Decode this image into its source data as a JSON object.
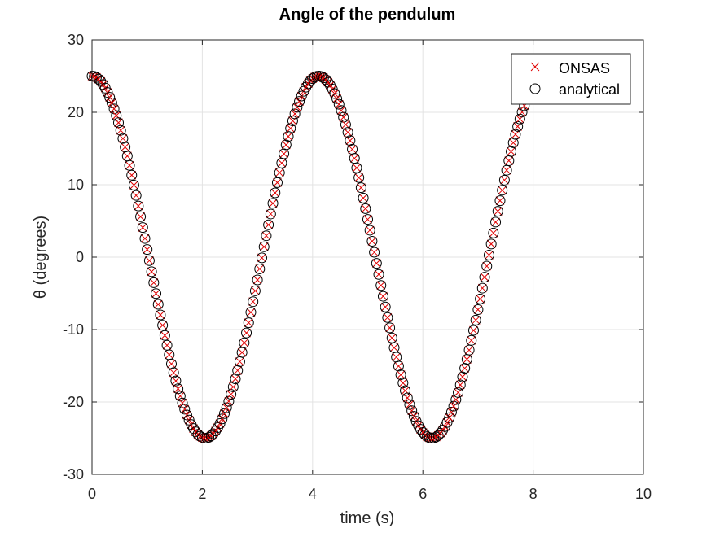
{
  "chart_data": {
    "type": "scatter",
    "title": "Angle of the pendulum",
    "xlabel": "time (s)",
    "ylabel": "θ (degrees)",
    "xlim": [
      0,
      10
    ],
    "ylim": [
      -30,
      30
    ],
    "xticks": [
      "0",
      "2",
      "4",
      "6",
      "8",
      "10"
    ],
    "yticks": [
      "-30",
      "-20",
      "-10",
      "0",
      "10",
      "20",
      "30"
    ],
    "grid": true,
    "legend_position": "top-right",
    "x_range_shown": [
      0,
      7.86
    ],
    "period_s": 4.11,
    "amplitude_deg": 25,
    "series": [
      {
        "name": "ONSAS",
        "marker": "x",
        "color": "#e00000"
      },
      {
        "name": "analytical",
        "marker": "o",
        "color": "#000000"
      }
    ],
    "samples": [
      {
        "t": 0.0,
        "theta": 25.0
      },
      {
        "t": 0.5,
        "theta": 18.3
      },
      {
        "t": 1.0,
        "theta": 1.4
      },
      {
        "t": 1.5,
        "theta": -17.0
      },
      {
        "t": 2.05,
        "theta": -25.0
      },
      {
        "t": 2.5,
        "theta": -20.5
      },
      {
        "t": 3.0,
        "theta": -5.2
      },
      {
        "t": 3.5,
        "theta": 13.8
      },
      {
        "t": 4.11,
        "theta": 25.0
      },
      {
        "t": 4.5,
        "theta": 21.9
      },
      {
        "t": 5.0,
        "theta": 7.8
      },
      {
        "t": 5.5,
        "theta": -11.3
      },
      {
        "t": 6.16,
        "theta": -25.0
      },
      {
        "t": 6.5,
        "theta": -22.6
      },
      {
        "t": 7.0,
        "theta": -10.9
      },
      {
        "t": 7.5,
        "theta": 8.3
      },
      {
        "t": 7.86,
        "theta": 21.5
      }
    ]
  }
}
